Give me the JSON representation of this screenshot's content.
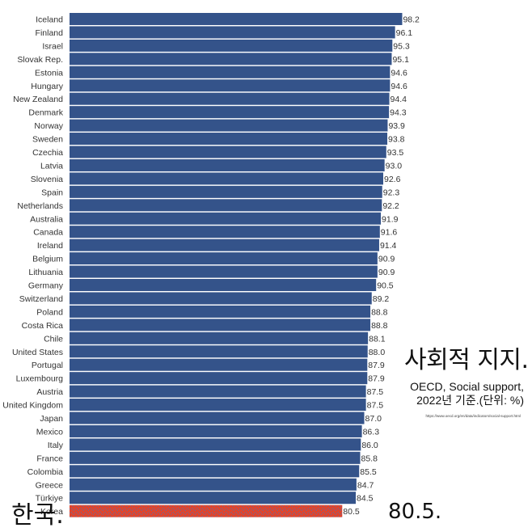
{
  "chart_data": {
    "type": "bar",
    "orientation": "horizontal",
    "categories": [
      "Iceland",
      "Finland",
      "Israel",
      "Slovak Rep.",
      "Estonia",
      "Hungary",
      "New Zealand",
      "Denmark",
      "Norway",
      "Sweden",
      "Czechia",
      "Latvia",
      "Slovenia",
      "Spain",
      "Netherlands",
      "Australia",
      "Canada",
      "Ireland",
      "Belgium",
      "Lithuania",
      "Germany",
      "Switzerland",
      "Poland",
      "Costa Rica",
      "Chile",
      "United States",
      "Portugal",
      "Luxembourg",
      "Austria",
      "United Kingdom",
      "Japan",
      "Mexico",
      "Italy",
      "France",
      "Colombia",
      "Greece",
      "Türkiye",
      "Korea"
    ],
    "values": [
      98.2,
      96.1,
      95.3,
      95.1,
      94.6,
      94.6,
      94.4,
      94.3,
      93.9,
      93.8,
      93.5,
      93.0,
      92.6,
      92.3,
      92.2,
      91.9,
      91.6,
      91.4,
      90.9,
      90.9,
      90.5,
      89.2,
      88.8,
      88.8,
      88.1,
      88.0,
      87.9,
      87.9,
      87.5,
      87.5,
      87.0,
      86.3,
      86.0,
      85.8,
      85.5,
      84.7,
      84.5,
      80.5
    ],
    "value_labels": [
      "98.2",
      "96.1",
      "95.3",
      "95.1",
      "94.6",
      "94.6",
      "94.4",
      "94.3",
      "93.9",
      "93.8",
      "93.5",
      "93.0",
      "92.6",
      "92.3",
      "92.2",
      "91.9",
      "91.6",
      "91.4",
      "90.9",
      "90.9",
      "90.5",
      "89.2",
      "88.8",
      "88.8",
      "88.1",
      "88.0",
      "87.9",
      "87.9",
      "87.5",
      "87.5",
      "87.0",
      "86.3",
      "86.0",
      "85.8",
      "85.5",
      "84.7",
      "84.5",
      "80.5"
    ],
    "xlim": [
      0,
      100
    ],
    "highlight_index": 37,
    "grid": false,
    "legend": "none"
  },
  "colors": {
    "bar": "#34538a",
    "highlight": "#e0442c",
    "highlight_speckle": "#5a6fa8",
    "text": "#333333"
  },
  "annotations": {
    "title": "사회적 지지.",
    "subtitle_line1": "OECD, Social support,",
    "subtitle_line2": "2022년 기준.(단위: %)",
    "source": "https://www.oecd.org/en/data/indicators/social-support.html",
    "highlight_label": "한국.",
    "highlight_value": "80.5."
  }
}
